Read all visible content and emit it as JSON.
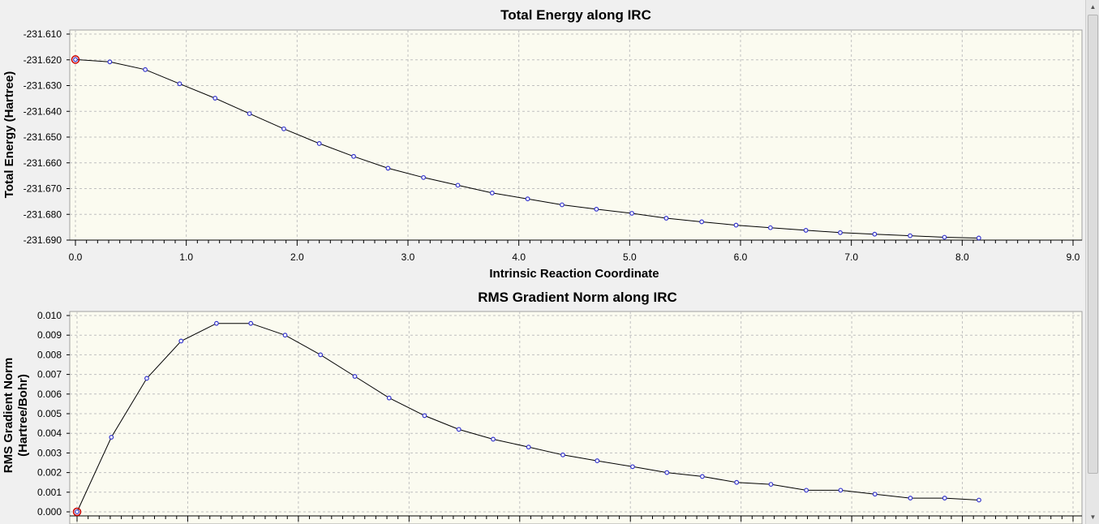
{
  "colors": {
    "plot_bg": "#fbfbf0",
    "grid": "#c0c0c0",
    "line": "#000000",
    "marker": "#3333cc",
    "highlight": "#cc0000"
  },
  "chart_data": [
    {
      "type": "line",
      "title": "Total Energy along IRC",
      "xlabel": "Intrinsic Reaction Coordinate",
      "ylabel": "Total Energy (Hartree)",
      "xlim": [
        0,
        9
      ],
      "ylim": [
        -231.691,
        -231.61
      ],
      "grid": true,
      "x_ticks": [
        "0.0",
        "1.0",
        "2.0",
        "3.0",
        "4.0",
        "5.0",
        "6.0",
        "7.0",
        "8.0",
        "9.0"
      ],
      "y_ticks": [
        "-231.610",
        "-231.620",
        "-231.630",
        "-231.640",
        "-231.650",
        "-231.660",
        "-231.670",
        "-231.680",
        "-231.690"
      ],
      "x": [
        0.0,
        0.31,
        0.63,
        0.94,
        1.26,
        1.57,
        1.88,
        2.2,
        2.51,
        2.82,
        3.14,
        3.45,
        3.76,
        4.08,
        4.39,
        4.7,
        5.02,
        5.33,
        5.65,
        5.96,
        6.27,
        6.59,
        6.9,
        7.21,
        7.53,
        7.84,
        8.15
      ],
      "values": [
        -231.6199,
        -231.6208,
        -231.6238,
        -231.6293,
        -231.6349,
        -231.6409,
        -231.6468,
        -231.6525,
        -231.6575,
        -231.6621,
        -231.6657,
        -231.6687,
        -231.6717,
        -231.674,
        -231.6763,
        -231.678,
        -231.6796,
        -231.6815,
        -231.6829,
        -231.6842,
        -231.6852,
        -231.6862,
        -231.6871,
        -231.6877,
        -231.6883,
        -231.6889,
        -231.6892
      ],
      "highlight_index": 0
    },
    {
      "type": "line",
      "title": "RMS Gradient Norm along IRC",
      "xlabel": "",
      "ylabel_lines": [
        "RMS Gradient Norm",
        "(Hartree/Bohr)"
      ],
      "ylim": [
        0,
        0.0102
      ],
      "grid": true,
      "y_ticks": [
        "0.010",
        "0.009",
        "0.008",
        "0.007",
        "0.006",
        "0.005",
        "0.004",
        "0.003",
        "0.002",
        "0.001",
        "0.000"
      ],
      "x": [
        0.0,
        0.31,
        0.63,
        0.94,
        1.26,
        1.57,
        1.88,
        2.2,
        2.51,
        2.82,
        3.14,
        3.45,
        3.76,
        4.08,
        4.39,
        4.7,
        5.02,
        5.33,
        5.65,
        5.96,
        6.27,
        6.59,
        6.9,
        7.21,
        7.53,
        7.84,
        8.15
      ],
      "values": [
        0.0,
        0.0038,
        0.0068,
        0.0087,
        0.0096,
        0.0096,
        0.009,
        0.008,
        0.0069,
        0.0058,
        0.0049,
        0.0042,
        0.0037,
        0.0033,
        0.0029,
        0.0026,
        0.0023,
        0.002,
        0.0018,
        0.0015,
        0.0014,
        0.0011,
        0.0011,
        0.0009,
        0.0007,
        0.0007,
        0.0006
      ],
      "highlight_index": 0
    }
  ]
}
